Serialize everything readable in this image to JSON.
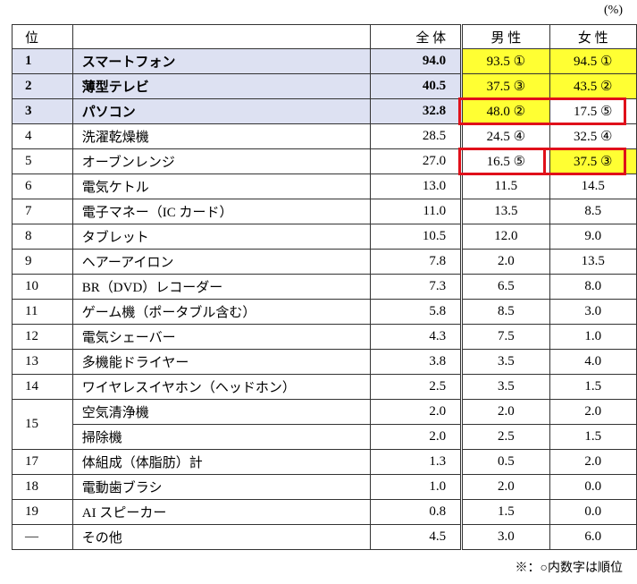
{
  "unit": "(%)",
  "header": {
    "rank": "位",
    "item": "",
    "total": "全 体",
    "male": "男 性",
    "female": "女 性"
  },
  "rows": [
    {
      "rank": "1",
      "item": "スマートフォン",
      "total": "94.0",
      "male": "93.5 ①",
      "female": "94.5 ①"
    },
    {
      "rank": "2",
      "item": "薄型テレビ",
      "total": "40.5",
      "male": "37.5 ③",
      "female": "43.5 ②"
    },
    {
      "rank": "3",
      "item": "パソコン",
      "total": "32.8",
      "male": "48.0 ②",
      "female": "17.5 ⑤"
    },
    {
      "rank": "4",
      "item": "洗濯乾燥機",
      "total": "28.5",
      "male": "24.5 ④",
      "female": "32.5 ④"
    },
    {
      "rank": "5",
      "item": "オーブンレンジ",
      "total": "27.0",
      "male": "16.5 ⑤",
      "female": "37.5 ③"
    },
    {
      "rank": "6",
      "item": "電気ケトル",
      "total": "13.0",
      "male": "11.5",
      "female": "14.5"
    },
    {
      "rank": "7",
      "item": "電子マネー（IC カード）",
      "total": "11.0",
      "male": "13.5",
      "female": "8.5"
    },
    {
      "rank": "8",
      "item": "タブレット",
      "total": "10.5",
      "male": "12.0",
      "female": "9.0"
    },
    {
      "rank": "9",
      "item": "ヘアーアイロン",
      "total": "7.8",
      "male": "2.0",
      "female": "13.5"
    },
    {
      "rank": "10",
      "item": "BR（DVD）レコーダー",
      "total": "7.3",
      "male": "6.5",
      "female": "8.0"
    },
    {
      "rank": "11",
      "item": "ゲーム機（ポータブル含む）",
      "total": "5.8",
      "male": "8.5",
      "female": "3.0"
    },
    {
      "rank": "12",
      "item": "電気シェーバー",
      "total": "4.3",
      "male": "7.5",
      "female": "1.0"
    },
    {
      "rank": "13",
      "item": "多機能ドライヤー",
      "total": "3.8",
      "male": "3.5",
      "female": "4.0"
    },
    {
      "rank": "14",
      "item": "ワイヤレスイヤホン（ヘッドホン）",
      "total": "2.5",
      "male": "3.5",
      "female": "1.5"
    },
    {
      "rank": "15",
      "item": "空気清浄機",
      "total": "2.0",
      "male": "2.0",
      "female": "2.0"
    },
    {
      "item": "掃除機",
      "total": "2.0",
      "male": "2.5",
      "female": "1.5"
    },
    {
      "rank": "17",
      "item": "体組成（体脂肪）計",
      "total": "1.3",
      "male": "0.5",
      "female": "2.0"
    },
    {
      "rank": "18",
      "item": "電動歯ブラシ",
      "total": "1.0",
      "male": "2.0",
      "female": "0.0"
    },
    {
      "rank": "19",
      "item": "AI スピーカー",
      "total": "0.8",
      "male": "1.5",
      "female": "0.0"
    },
    {
      "rank": "―",
      "item": "その他",
      "total": "4.5",
      "male": "3.0",
      "female": "6.0"
    }
  ],
  "note": "※：○内数字は順位"
}
